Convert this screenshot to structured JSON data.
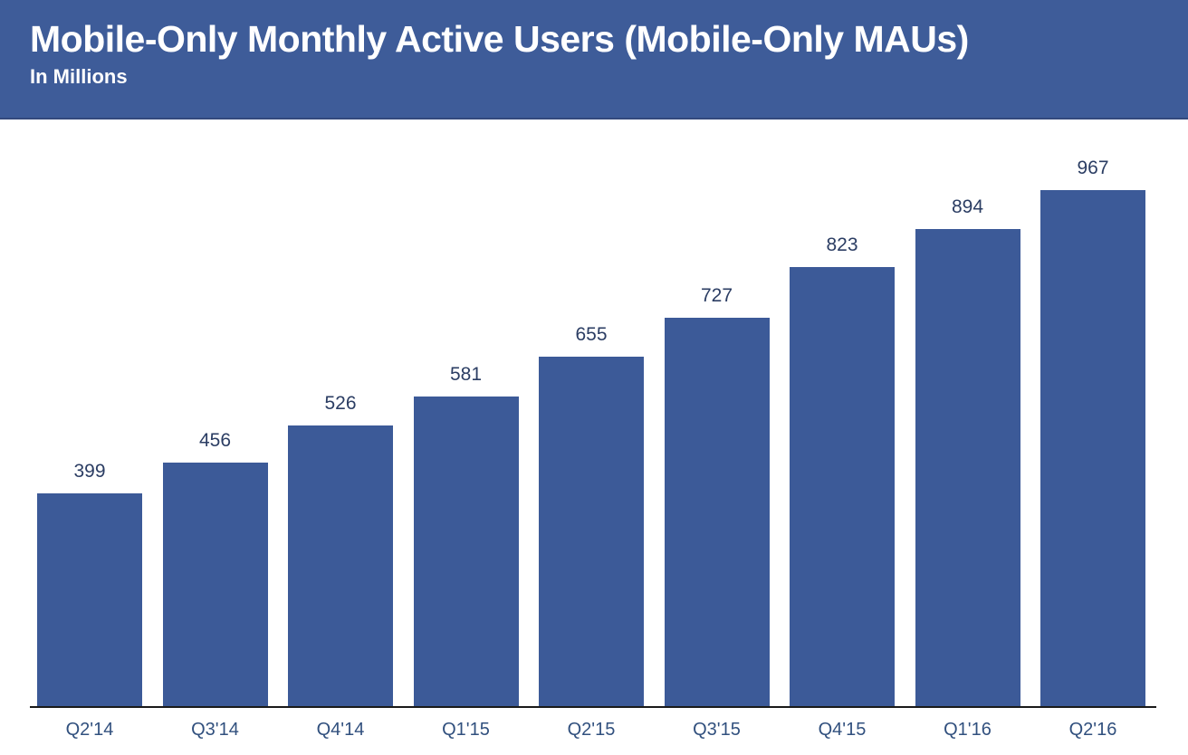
{
  "header": {
    "title": "Mobile-Only Monthly Active Users (Mobile-Only MAUs)",
    "subtitle": "In Millions"
  },
  "chart_data": {
    "type": "bar",
    "title": "Mobile-Only Monthly Active Users (Mobile-Only MAUs)",
    "subtitle": "In Millions",
    "categories": [
      "Q2'14",
      "Q3'14",
      "Q4'14",
      "Q1'15",
      "Q2'15",
      "Q3'15",
      "Q4'15",
      "Q1'16",
      "Q2'16"
    ],
    "values": [
      399,
      456,
      526,
      581,
      655,
      727,
      823,
      894,
      967
    ],
    "xlabel": "",
    "ylabel": "In Millions",
    "ylim": [
      0,
      967
    ],
    "grid": false,
    "legend": false,
    "data_labels": true,
    "colors": {
      "banner_background": "#3e5c99",
      "banner_border": "#33497d",
      "banner_text": "#ffffff",
      "bar_fill": "#3c5a98",
      "value_label": "#2b3d63",
      "tick_label": "#31507e",
      "axis_line": "#1a1a1a",
      "page_background": "#ffffff"
    }
  }
}
